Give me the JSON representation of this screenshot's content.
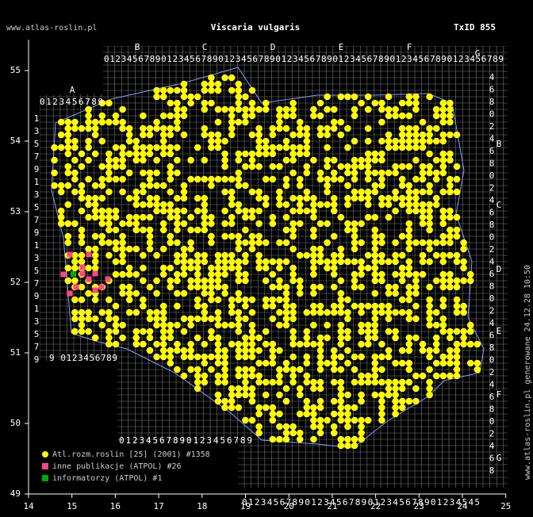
{
  "header": {
    "site": "www.atlas-roslin.pl",
    "title": "Viscaria vulgaris",
    "taxon_id": "TxID 855"
  },
  "axes": {
    "x_ticks": [
      14,
      15,
      16,
      17,
      18,
      19,
      20,
      21,
      22,
      23,
      24,
      25
    ],
    "y_ticks": [
      55,
      54,
      53,
      52,
      51,
      50,
      49
    ]
  },
  "grid_letters": {
    "top": [
      "A",
      "B",
      "C",
      "D",
      "E",
      "F",
      "G"
    ],
    "right": [
      "B",
      "C",
      "D",
      "E",
      "F",
      "G"
    ]
  },
  "grid_digits": {
    "top": "0123456789012345678901234567890123456789012345678901234567890123456789",
    "top_a": "0123456789",
    "bottom_left": "9 0123456789",
    "bottom_mid": "01234567890123456789",
    "bottom": "01234567890123456789012345678901234545",
    "left": "13579135791357913579",
    "right": "468024680246802468024680246802468"
  },
  "legend": [
    {
      "label": "Atl.rozm.roslin [25] (2001) #1358",
      "color": "#ffff00"
    },
    {
      "label": "inne publikacje (ATPOL) #26",
      "color": "#ff4488"
    },
    {
      "label": "informatorzy (ATPOL) #1",
      "color": "#00aa00"
    }
  ],
  "footer": "www.atlas-roslin.pl generowane 24.12.28 10:50"
}
